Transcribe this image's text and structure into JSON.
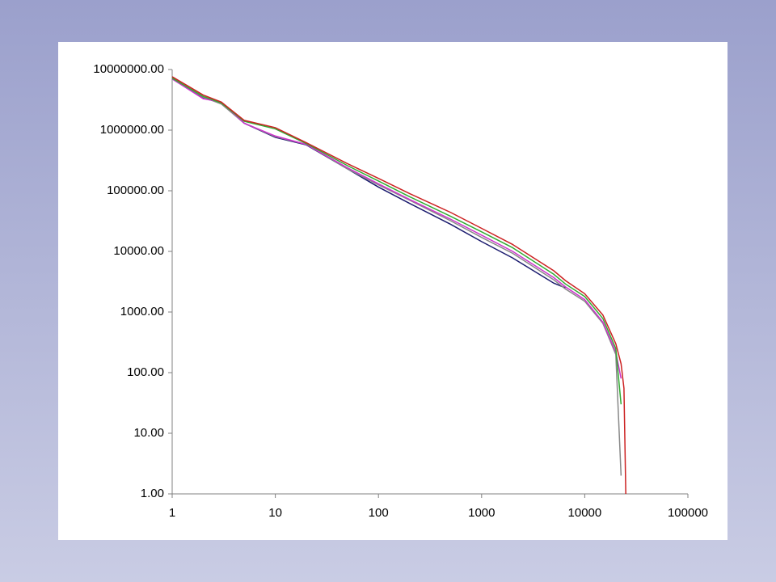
{
  "chart_data": {
    "type": "line",
    "xscale": "log",
    "yscale": "log",
    "grid": false,
    "x": [
      1,
      2,
      3,
      5,
      10,
      20,
      50,
      100,
      200,
      500,
      1000,
      2000,
      5000,
      6500,
      10000,
      15000,
      20000,
      22500,
      24000,
      25000
    ],
    "series": [
      {
        "color": "#1a1a6e",
        "values": [
          7000000,
          3400000,
          2800000,
          1300000,
          760000,
          570000,
          230000,
          115000,
          62000,
          28000,
          14500,
          7800,
          3000,
          2500,
          null,
          null,
          null,
          null,
          null,
          null
        ]
      },
      {
        "color": "#888888",
        "values": [
          7300000,
          3500000,
          2700000,
          1300000,
          780000,
          580000,
          230000,
          125000,
          70000,
          32000,
          17000,
          9300,
          3400,
          2400,
          1500,
          650,
          200,
          2,
          null,
          null
        ]
      },
      {
        "color": "#cc33cc",
        "values": [
          7000000,
          3300000,
          2900000,
          1300000,
          800000,
          580000,
          240000,
          130000,
          72000,
          34000,
          18500,
          10000,
          3700,
          2600,
          1600,
          680,
          220,
          80,
          null,
          null
        ]
      },
      {
        "color": "#33aa33",
        "values": [
          7200000,
          3600000,
          2800000,
          1400000,
          1050000,
          600000,
          260000,
          145000,
          80000,
          38000,
          21000,
          11500,
          4200,
          2900,
          1800,
          780,
          250,
          30,
          null,
          null
        ]
      },
      {
        "color": "#cc2222",
        "values": [
          7600000,
          3800000,
          2900000,
          1450000,
          1100000,
          620000,
          280000,
          160000,
          90000,
          44000,
          24000,
          13000,
          4800,
          3300,
          2000,
          890,
          300,
          140,
          55,
          1
        ]
      }
    ],
    "xlim": [
      1,
      100000
    ],
    "xticks": [
      1,
      10,
      100,
      1000,
      10000,
      100000
    ],
    "ylim": [
      1,
      10000000
    ],
    "yticks": [
      {
        "value": 1,
        "label": "1.00"
      },
      {
        "value": 10,
        "label": "10.00"
      },
      {
        "value": 100,
        "label": "100.00"
      },
      {
        "value": 1000,
        "label": "1000.00"
      },
      {
        "value": 10000,
        "label": "10000.00"
      },
      {
        "value": 100000,
        "label": "100000.00"
      },
      {
        "value": 1000000,
        "label": "1000000.00"
      },
      {
        "value": 10000000,
        "label": "10000000.00"
      }
    ]
  }
}
